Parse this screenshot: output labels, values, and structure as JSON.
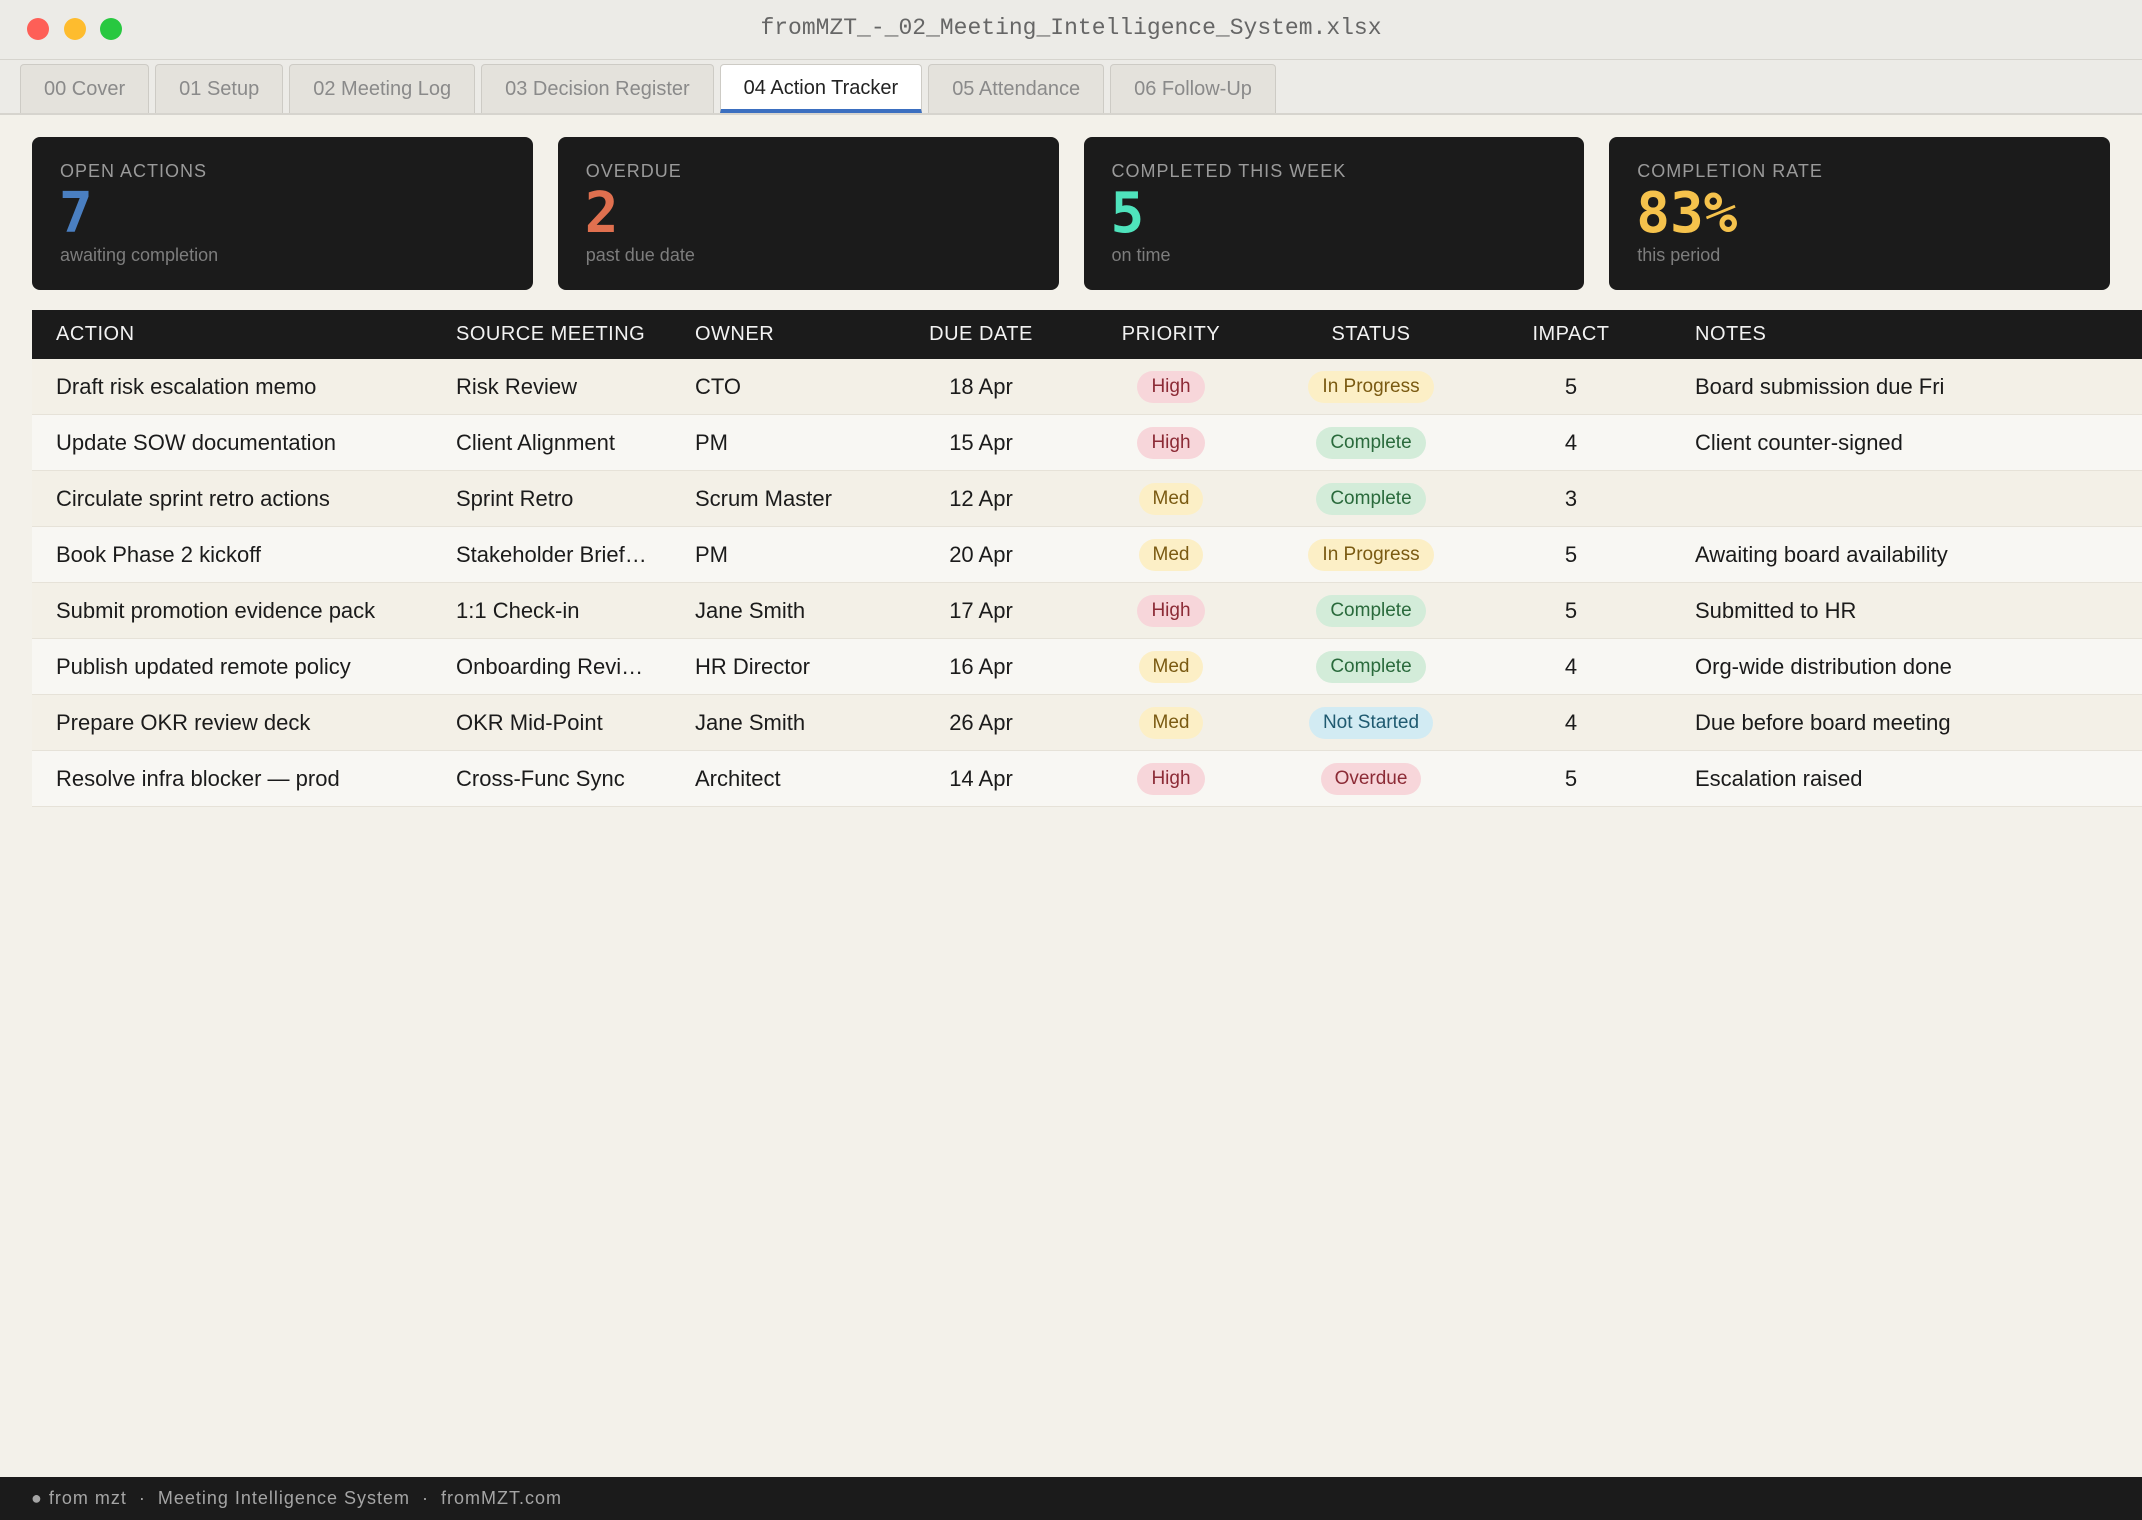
{
  "window": {
    "title": "fromMZT_-_02_Meeting_Intelligence_System.xlsx"
  },
  "tabs": {
    "items": [
      "00 Cover",
      "01 Setup",
      "02 Meeting Log",
      "03 Decision Register",
      "04 Action Tracker",
      "05 Attendance",
      "06 Follow-Up"
    ],
    "active": 4
  },
  "kpis": [
    {
      "label": "OPEN ACTIONS",
      "value": 7,
      "sub": "awaiting completion",
      "color": "#4a7fc1"
    },
    {
      "label": "OVERDUE",
      "value": 2,
      "sub": "past due date",
      "color": "#e0704f"
    },
    {
      "label": "COMPLETED THIS WEEK",
      "value": 5,
      "sub": "on time",
      "color": "#4fe3bc"
    },
    {
      "label": "COMPLETION RATE",
      "value": "83%",
      "sub": "this period",
      "color": "#f5c24c"
    }
  ],
  "table": {
    "columns": [
      "ACTION",
      "SOURCE MEETING",
      "OWNER",
      "DUE DATE",
      "PRIORITY",
      "STATUS",
      "IMPACT",
      "NOTES"
    ],
    "rows": [
      [
        "Draft risk escalation memo",
        "Risk Review",
        "CTO",
        "18 Apr",
        "High",
        "In Progress",
        5,
        "Board submission due Fri"
      ],
      [
        "Update SOW documentation",
        "Client Alignment",
        "PM",
        "15 Apr",
        "High",
        "Complete",
        4,
        "Client counter-signed"
      ],
      [
        "Circulate sprint retro actions",
        "Sprint Retro",
        "Scrum Master",
        "12 Apr",
        "Med",
        "Complete",
        3,
        null
      ],
      [
        "Book Phase 2 kickoff",
        "Stakeholder Brief…",
        "PM",
        "20 Apr",
        "Med",
        "In Progress",
        5,
        "Awaiting board availability"
      ],
      [
        "Submit promotion evidence pack",
        "1:1 Check-in",
        "Jane Smith",
        "17 Apr",
        "High",
        "Complete",
        5,
        "Submitted to HR"
      ],
      [
        "Publish updated remote policy",
        "Onboarding Revi…",
        "HR Director",
        "16 Apr",
        "Med",
        "Complete",
        4,
        "Org-wide distribution done"
      ],
      [
        "Prepare OKR review deck",
        "OKR Mid-Point",
        "Jane Smith",
        "26 Apr",
        "Med",
        "Not Started",
        4,
        "Due before board meeting"
      ],
      [
        "Resolve infra blocker — prod",
        "Cross-Func Sync",
        "Architect",
        "14 Apr",
        "High",
        "Overdue",
        5,
        "Escalation raised"
      ]
    ],
    "pill_styles": {
      "High": {
        "bg": "#f7d6da",
        "fg": "#8c2b36"
      },
      "Med": {
        "bg": "#fcefc6",
        "fg": "#7a5a12"
      },
      "In Progress": {
        "bg": "#fcefc6",
        "fg": "#7a5a12"
      },
      "Complete": {
        "bg": "#d3ecd9",
        "fg": "#2a6a3c"
      },
      "Not Started": {
        "bg": "#d2ebf3",
        "fg": "#1f5a70"
      },
      "Overdue": {
        "bg": "#f7d6da",
        "fg": "#8c2b36"
      }
    }
  },
  "footer": {
    "text": "● from mzt  ·  Meeting Intelligence System  ·  fromMZT.com"
  }
}
